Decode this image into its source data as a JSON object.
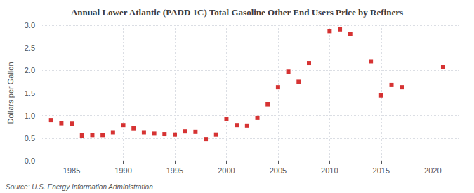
{
  "chart_data": {
    "type": "scatter",
    "title": "Annual Lower Atlantic (PADD 1C) Total Gasoline Other End Users Price by Refiners",
    "ylabel": "Dollars per Gallon",
    "annotations": [
      "Source: U.S. Energy Information Administration"
    ],
    "x": [
      1983,
      1984,
      1985,
      1986,
      1987,
      1988,
      1989,
      1990,
      1991,
      1992,
      1993,
      1994,
      1995,
      1996,
      1997,
      1998,
      1999,
      2000,
      2001,
      2002,
      2003,
      2004,
      2005,
      2006,
      2007,
      2008,
      2010,
      2011,
      2012,
      2014,
      2015,
      2016,
      2017,
      2021
    ],
    "values": [
      0.9,
      0.83,
      0.82,
      0.56,
      0.57,
      0.57,
      0.63,
      0.79,
      0.72,
      0.63,
      0.6,
      0.59,
      0.58,
      0.65,
      0.64,
      0.48,
      0.58,
      0.93,
      0.79,
      0.78,
      0.95,
      1.25,
      1.63,
      1.97,
      1.75,
      2.16,
      2.87,
      2.91,
      2.8,
      2.2,
      1.45,
      1.68,
      1.63,
      2.08
    ],
    "color": "#cc0000",
    "marker": "square",
    "xlim": [
      1982,
      2022.5
    ],
    "xticks": [
      1985,
      1990,
      1995,
      2000,
      2005,
      2010,
      2015,
      2020
    ],
    "ylim": [
      0.0,
      3.0
    ],
    "yticks": [
      {
        "value": 0.0,
        "label": "0.0"
      },
      0.5,
      {
        "value": 1.0,
        "label": "1.0"
      },
      1.5,
      {
        "value": 2.0,
        "label": "2.0"
      },
      2.5,
      {
        "value": 3.0,
        "label": "3.0"
      }
    ],
    "grid": true
  }
}
